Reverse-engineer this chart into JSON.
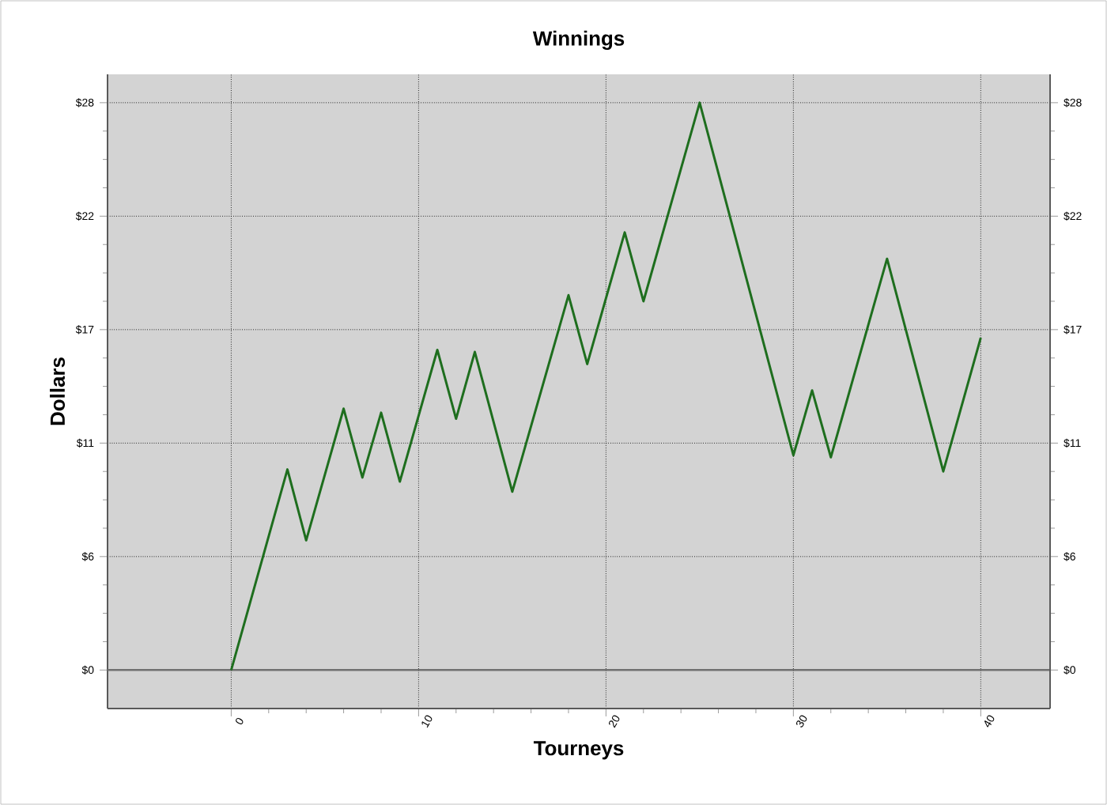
{
  "chart_data": {
    "type": "line",
    "title": "Winnings",
    "xlabel": "Tourneys",
    "ylabel": "Dollars",
    "x": [
      0,
      3,
      4,
      6,
      7,
      8,
      9,
      11,
      12,
      13,
      15,
      18,
      19,
      21,
      22,
      25,
      30,
      31,
      32,
      35,
      38,
      40
    ],
    "series": [
      {
        "color": "#1e6e1e",
        "values": [
          0,
          9.9,
          6.4,
          12.9,
          9.5,
          12.7,
          9.3,
          15.8,
          12.4,
          15.7,
          8.8,
          18.5,
          15.1,
          21.6,
          18.2,
          28.0,
          10.6,
          13.8,
          10.5,
          20.3,
          9.8,
          16.4
        ]
      }
    ],
    "xlim": [
      -6.6,
      43.7
    ],
    "xticks": [
      0,
      10,
      20,
      30,
      40
    ],
    "ylim": [
      -1.9,
      29.4
    ],
    "yticks": [
      {
        "value": 0,
        "label": "$0"
      },
      {
        "value": 5.6,
        "label": "$6"
      },
      {
        "value": 11.2,
        "label": "$11"
      },
      {
        "value": 16.8,
        "label": "$17"
      },
      {
        "value": 22.4,
        "label": "$22"
      },
      {
        "value": 28,
        "label": "$28"
      }
    ],
    "y2lim": [
      -1.9,
      29.4
    ],
    "y2ticks": [
      {
        "value": 0,
        "label": "$0"
      },
      {
        "value": 5.6,
        "label": "$6"
      },
      {
        "value": 11.2,
        "label": "$11"
      },
      {
        "value": 16.8,
        "label": "$17"
      },
      {
        "value": 22.4,
        "label": "$22"
      },
      {
        "value": 28,
        "label": "$28"
      }
    ],
    "ref_lines": [
      {
        "axis": "y",
        "value": 0,
        "color": "#707070"
      }
    ],
    "grid": true,
    "marker": "none",
    "line_style": "solid"
  }
}
